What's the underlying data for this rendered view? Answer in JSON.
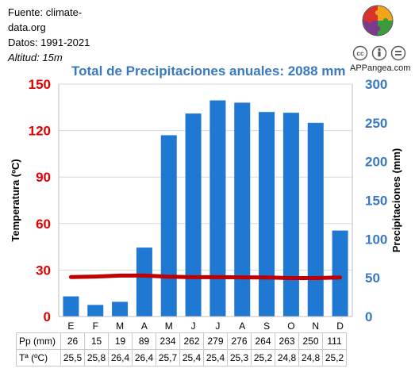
{
  "source": {
    "line1": "Fuente: climate-",
    "line2": "data.org",
    "period": "Datos: 1991-2021",
    "altitude": "Altitud: 15m"
  },
  "branding": {
    "logo_icon": "puzzle-logo-icon",
    "license_icon": "cc-by-nd-icon",
    "site": "APPangea.com"
  },
  "chart_data": {
    "type": "bar",
    "title": "Total de Precipitaciones anuales: 2088 mm",
    "categories": [
      "E",
      "F",
      "M",
      "A",
      "M",
      "J",
      "J",
      "A",
      "S",
      "O",
      "N",
      "D"
    ],
    "series": [
      {
        "name": "Pp (mm)",
        "kind": "bar",
        "axis": "right",
        "color": "#1f78d1",
        "values": [
          26,
          15,
          19,
          89,
          234,
          262,
          279,
          276,
          264,
          263,
          250,
          111
        ]
      },
      {
        "name": "Tª (ºC)",
        "kind": "line",
        "axis": "left",
        "color": "#c00000",
        "values": [
          25.5,
          25.8,
          26.4,
          26.4,
          25.7,
          25.4,
          25.4,
          25.3,
          25.2,
          24.8,
          24.8,
          25.2
        ]
      }
    ],
    "y_left": {
      "label": "Temperatura (ºC)",
      "min": 0,
      "max": 150,
      "ticks": [
        "0",
        "30",
        "60",
        "90",
        "120",
        "150"
      ],
      "color": "#e00000"
    },
    "y_right": {
      "label": "Precipitaciones (mm)",
      "min": 0,
      "max": 300,
      "ticks": [
        "0",
        "50",
        "100",
        "150",
        "200",
        "250",
        "300"
      ],
      "color": "#3a78c0"
    },
    "grid": "horizontal",
    "table": {
      "row_labels": [
        "Pp (mm)",
        "Tª (ºC)"
      ],
      "pp": [
        "26",
        "15",
        "19",
        "89",
        "234",
        "262",
        "279",
        "276",
        "264",
        "263",
        "250",
        "111"
      ],
      "temp": [
        "25,5",
        "25,8",
        "26,4",
        "26,4",
        "25,7",
        "25,4",
        "25,4",
        "25,3",
        "25,2",
        "24,8",
        "24,8",
        "25,2"
      ]
    }
  }
}
